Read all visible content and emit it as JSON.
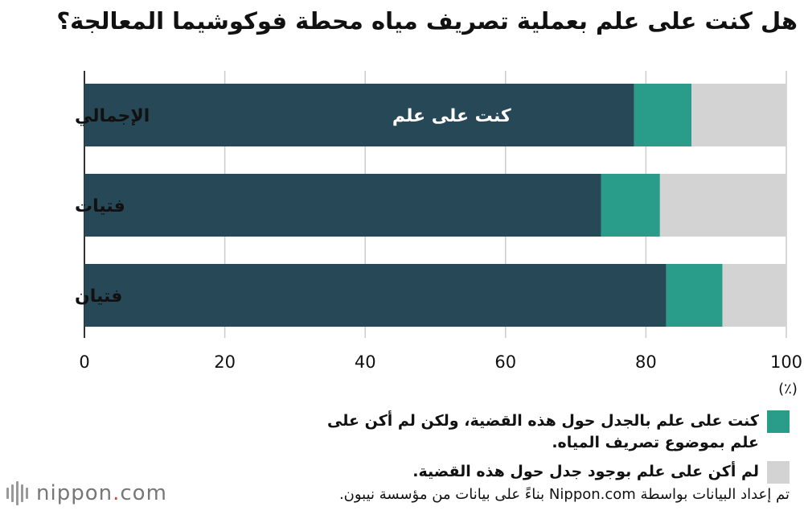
{
  "title": "هل كنت على علم بعملية تصريف مياه محطة فوكوشيما المعالجة؟",
  "chart_data": {
    "type": "bar",
    "orientation": "horizontal",
    "stacked": true,
    "categories": [
      "الإجمالي",
      "فتيات",
      "فتيان"
    ],
    "series": [
      {
        "name": "كنت على علم",
        "values": [
          78.3,
          73.6,
          82.9
        ],
        "color": "#274856"
      },
      {
        "name": "كنت على علم بالجدل حول هذه القضية، ولكن لم أكن على علم بموضوع تصريف المياه.",
        "values": [
          8.2,
          8.4,
          8.0
        ],
        "color": "#2a9d8a"
      },
      {
        "name": "لم أكن على علم بوجود جدل حول هذه القضية.",
        "values": [
          13.5,
          18.0,
          9.1
        ],
        "color": "#d3d3d3"
      }
    ],
    "xlim": [
      0,
      100
    ],
    "xticks": [
      "0",
      "20",
      "40",
      "60",
      "80",
      "100"
    ],
    "unit_label": "(٪)",
    "grid": true,
    "inline_label": "كنت على علم"
  },
  "source": "تم إعداد البيانات بواسطة Nippon.com بناءً على بيانات من مؤسسة نيبون.",
  "logo": {
    "name": "nippon",
    "dot": ".",
    "suffix": "com"
  }
}
